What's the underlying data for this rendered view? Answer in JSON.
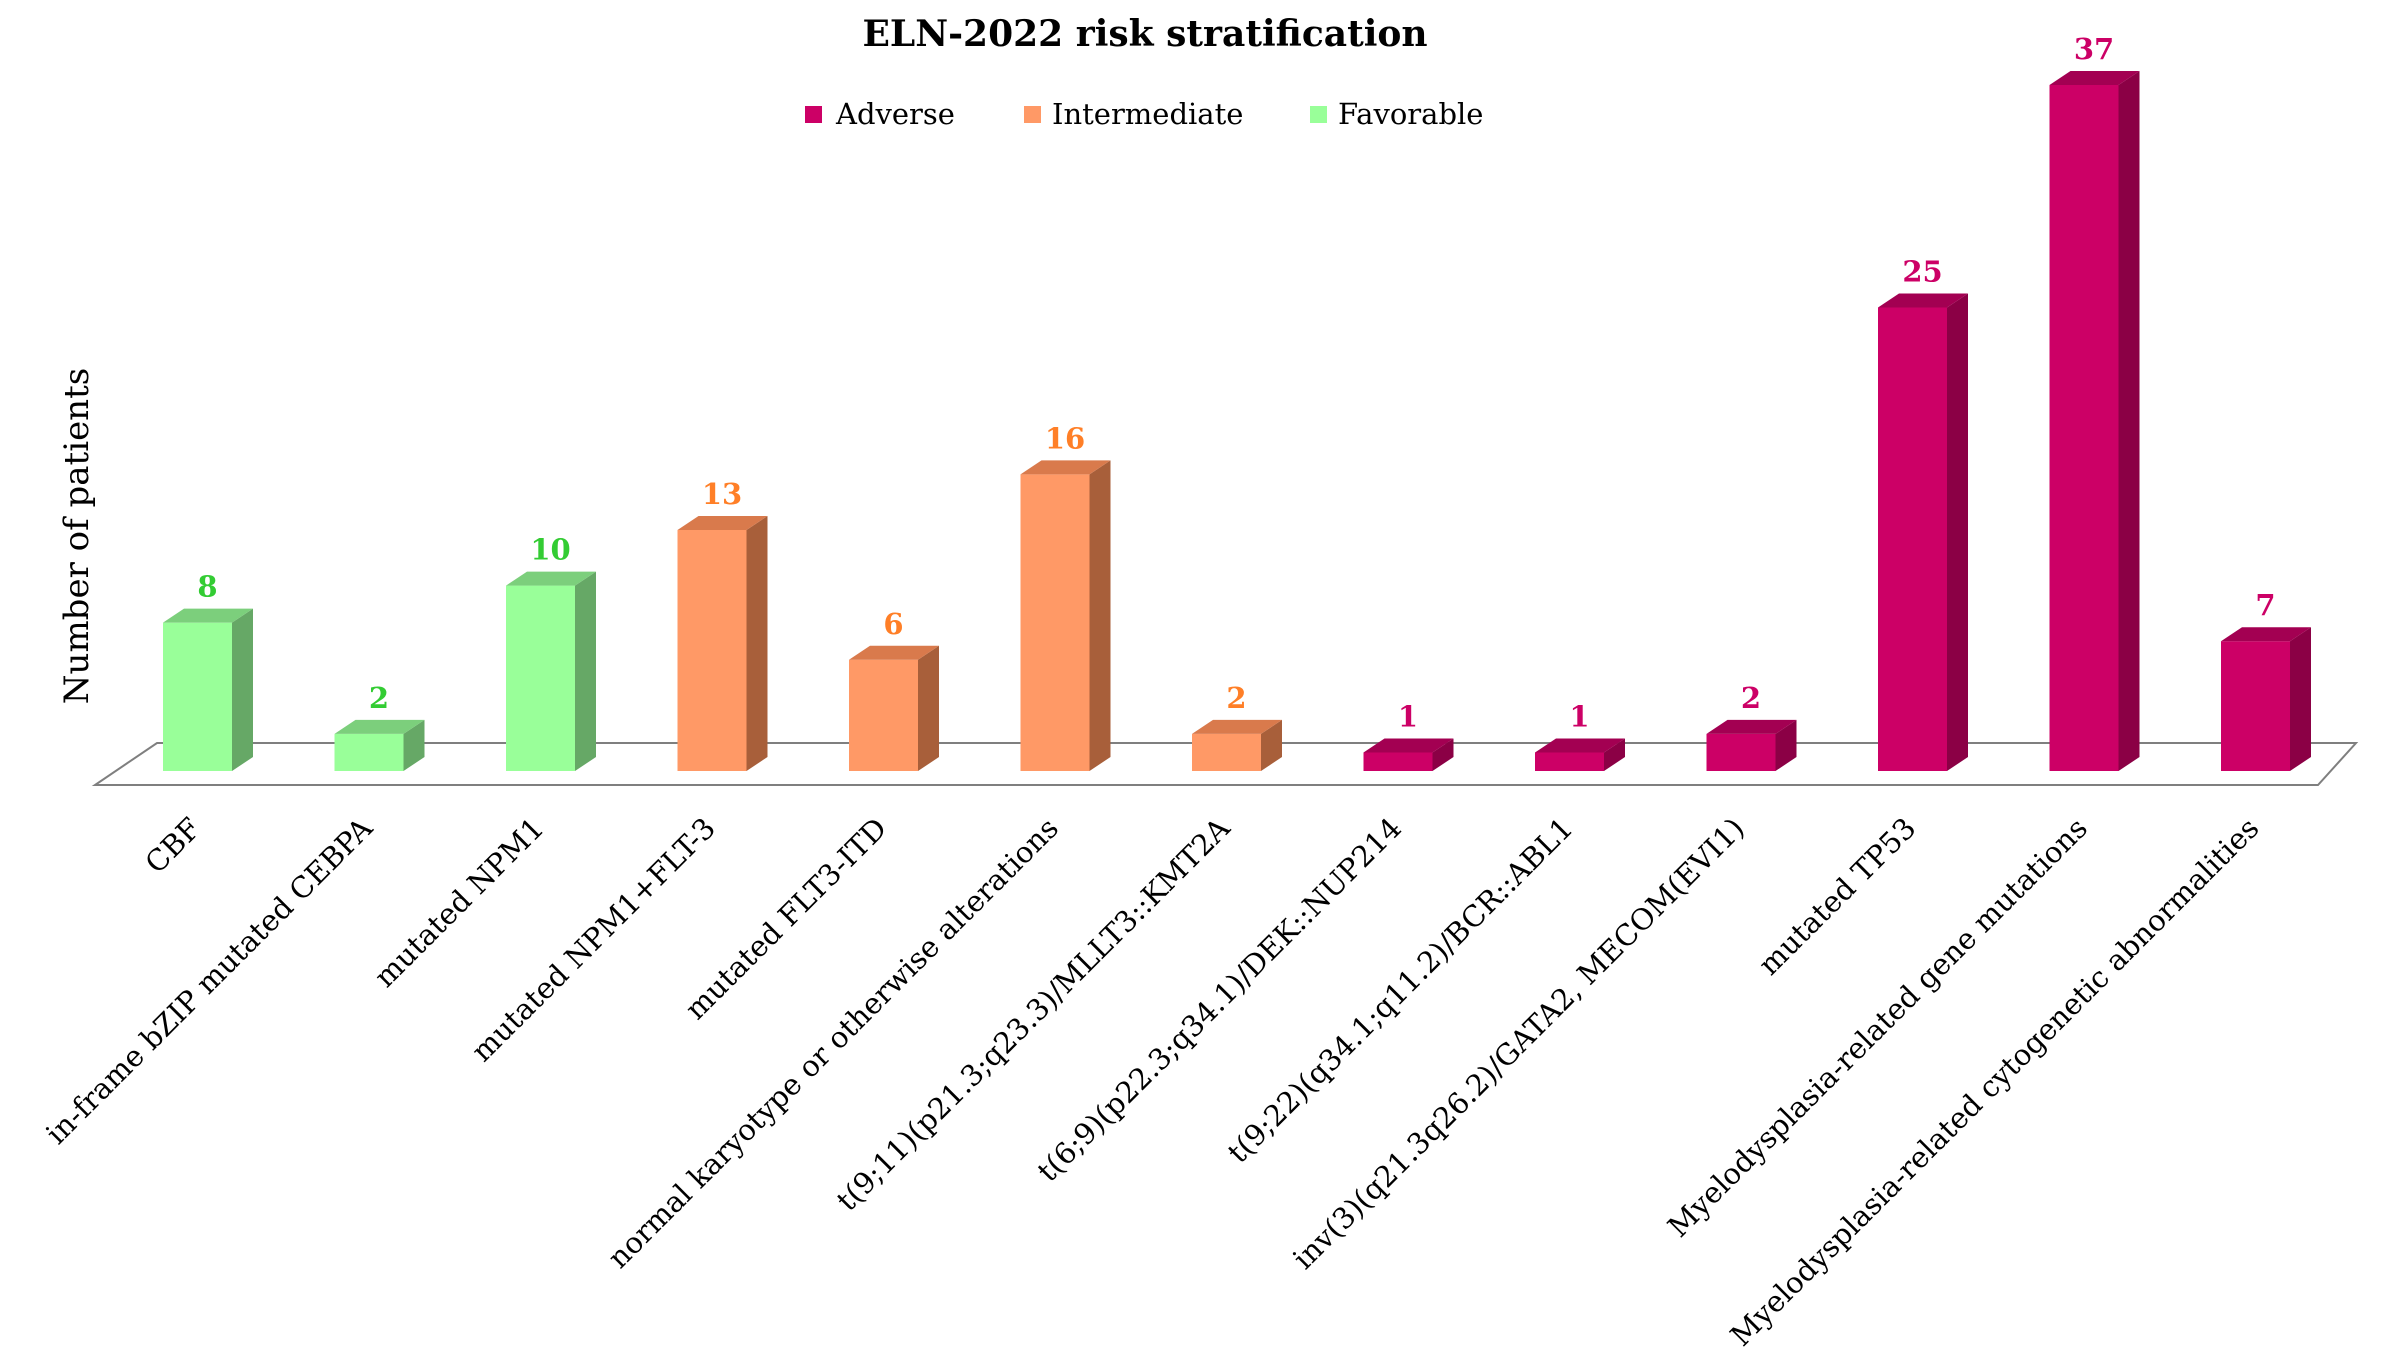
{
  "chart_data": {
    "type": "bar",
    "title": "ELN-2022 risk stratification",
    "ylabel": "Number of patients",
    "xlabel": "",
    "ylim": [
      0,
      37
    ],
    "legend": {
      "position": "top-center",
      "entries": [
        {
          "name": "Adverse",
          "color": "#cc0066"
        },
        {
          "name": "Intermediate",
          "color": "#ff9966"
        },
        {
          "name": "Favorable",
          "color": "#99ff99"
        }
      ]
    },
    "categories": [
      "CBF",
      "in-frame bZIP mutated CEBPA",
      "mutated NPM1",
      "mutated NPM1+FLT-3",
      "mutated FLT3-ITD",
      "normal karyotype or otherwise alterations",
      "t(9;11)(p21.3;q23.3)/MLLT3::KMT2A",
      "t(6;9)(p22.3;q34.1)/DEK::NUP214",
      "t(9;22)(q34.1;q11.2)/BCR::ABL1",
      "inv(3)(q21.3q26.2)/GATA2, MECOM(EVI1)",
      "mutated TP53",
      "Myelodysplasia-related gene mutations",
      "Myelodysplasia-related cytogenetic abnormalities"
    ],
    "values": [
      8,
      2,
      10,
      13,
      6,
      16,
      2,
      1,
      1,
      2,
      25,
      37,
      7
    ],
    "value_labels": [
      "8",
      "2",
      "10",
      "13",
      "6",
      "16",
      "2",
      "1",
      "1",
      "2",
      "25",
      "37",
      "7"
    ],
    "groups": [
      "Favorable",
      "Favorable",
      "Favorable",
      "Intermediate",
      "Intermediate",
      "Intermediate",
      "Intermediate",
      "Adverse",
      "Adverse",
      "Adverse",
      "Adverse",
      "Adverse",
      "Adverse"
    ],
    "colors": {
      "Favorable": {
        "front": "#99ff99",
        "side": "#66a866",
        "top": "#7ccf7c",
        "label": "#33cc33"
      },
      "Intermediate": {
        "front": "#ff9966",
        "side": "#a85f3a",
        "top": "#d97a4c",
        "label": "#ff7f27"
      },
      "Adverse": {
        "front": "#cc0066",
        "side": "#8b0045",
        "top": "#a30052",
        "label": "#cc0066"
      }
    },
    "grid": false
  }
}
